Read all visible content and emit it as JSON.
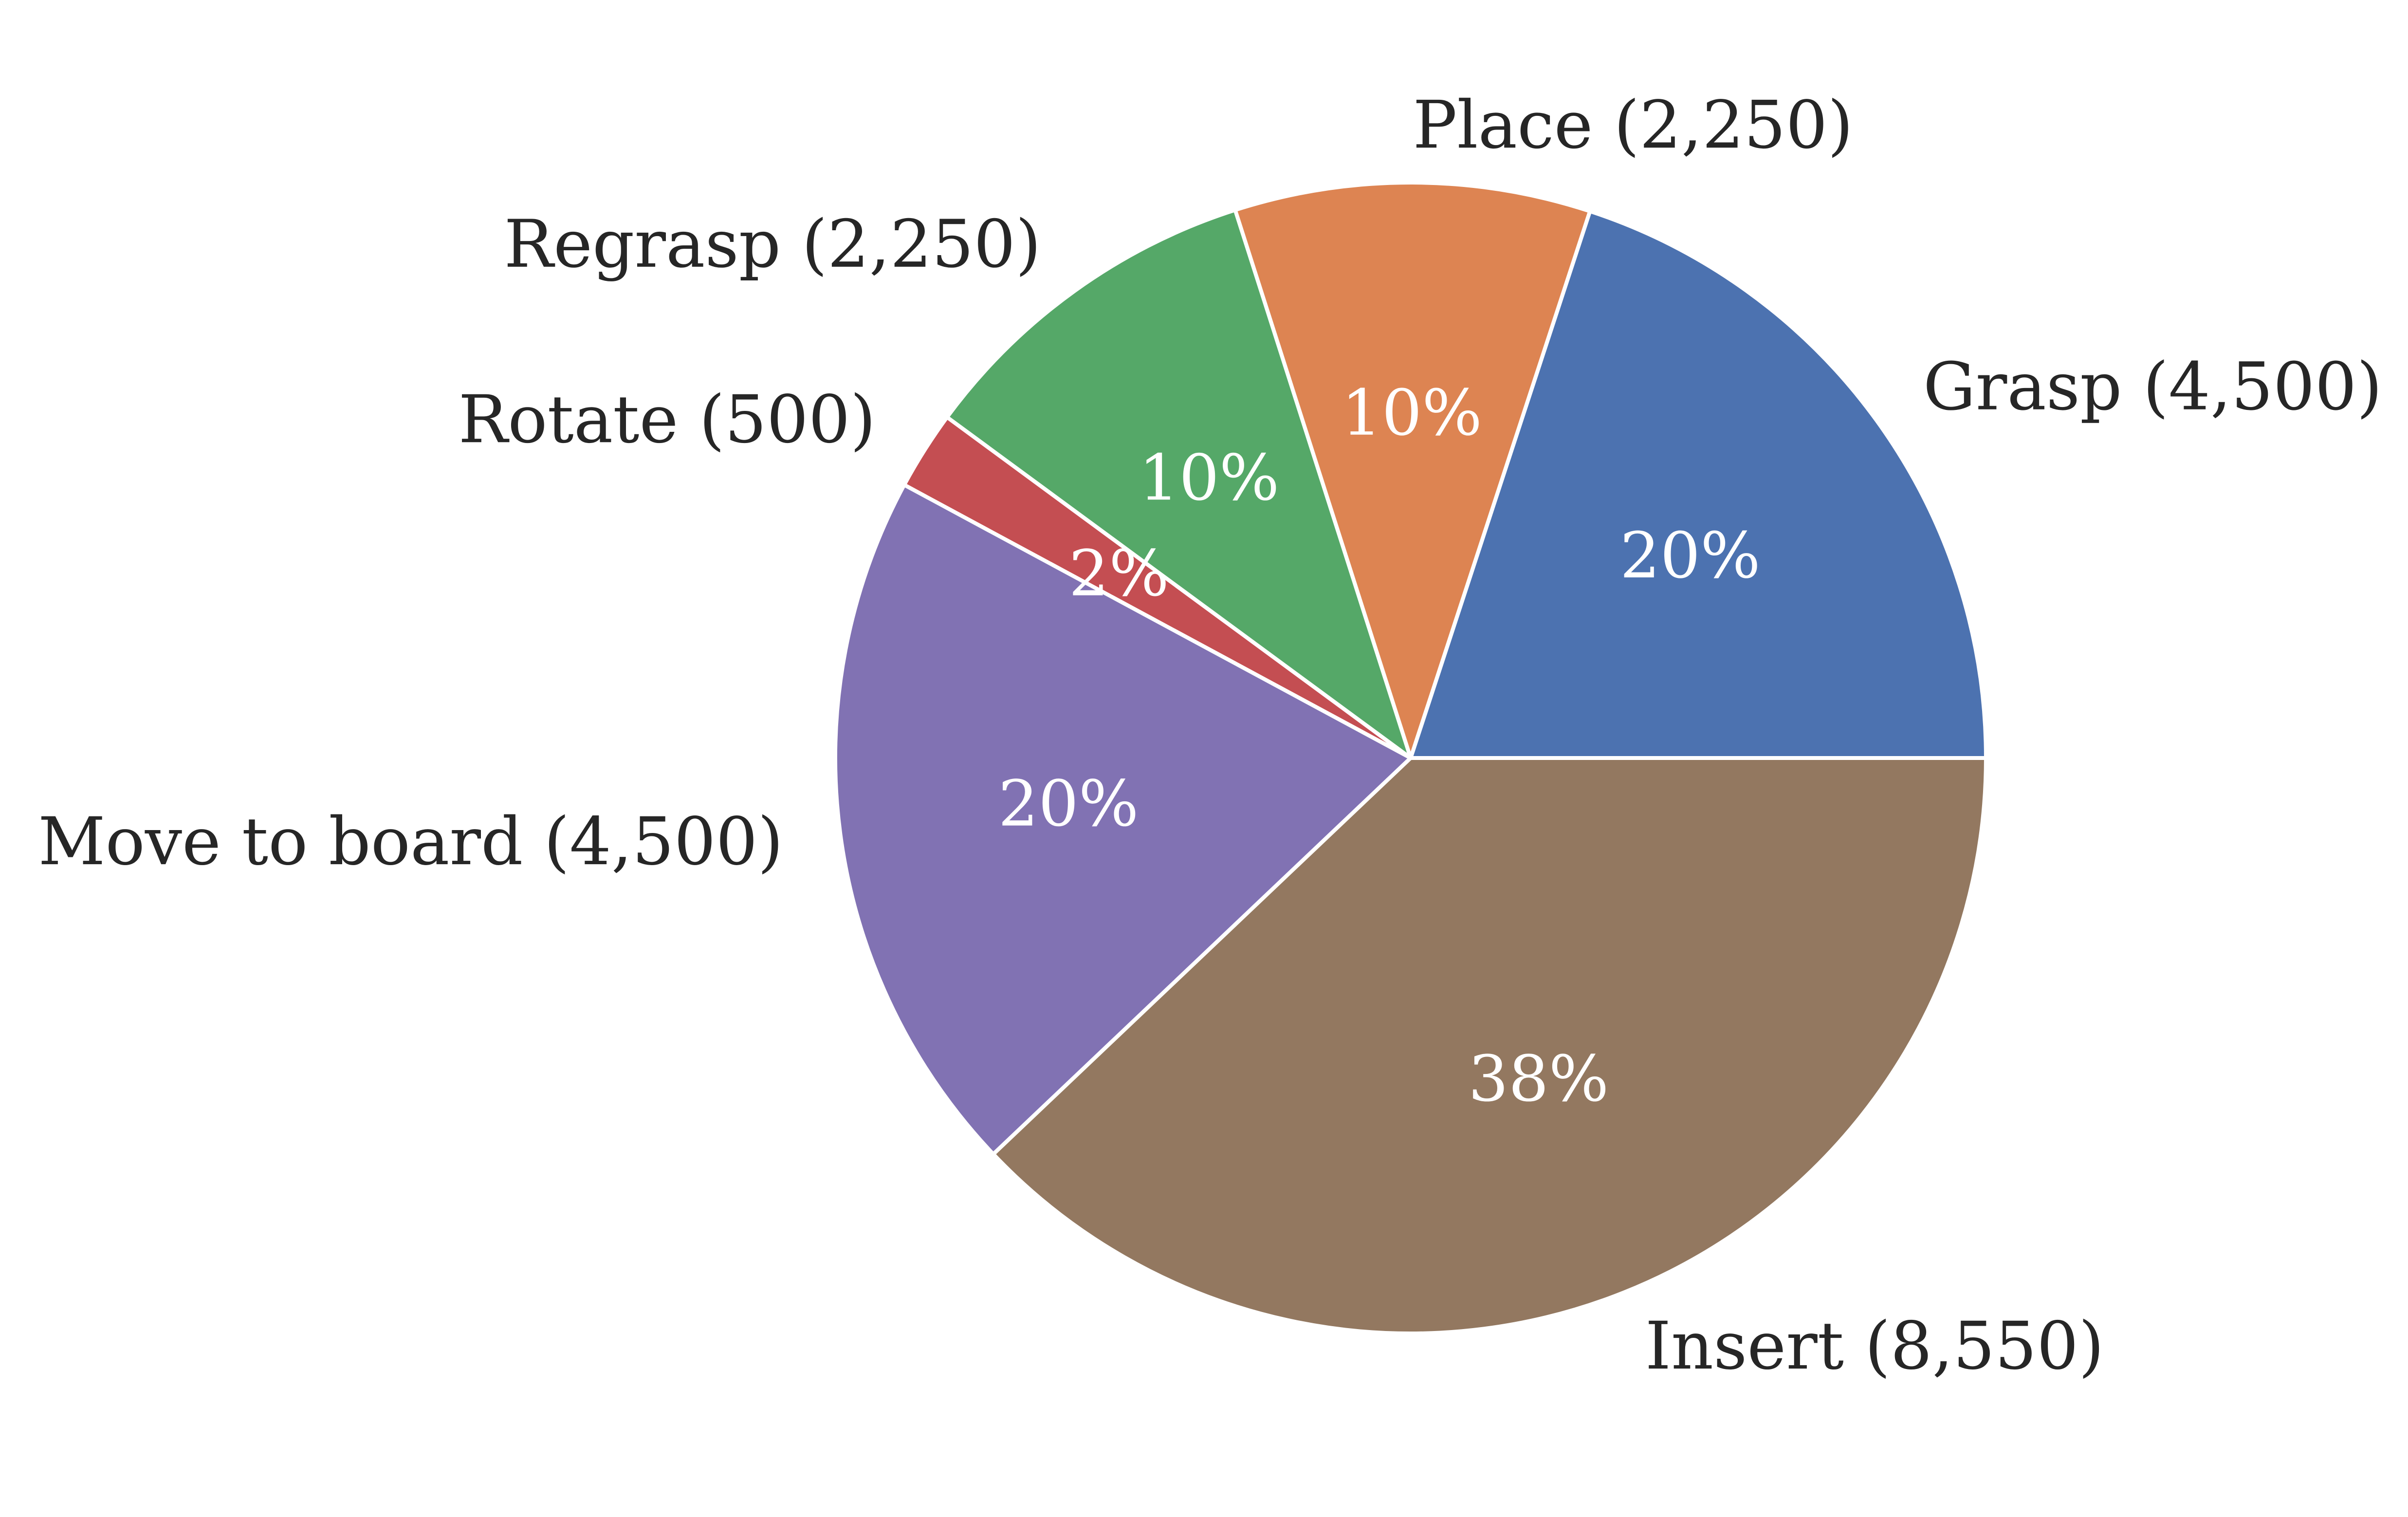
{
  "chart_data": {
    "type": "pie",
    "title": "",
    "start_angle_deg": 0,
    "direction": "counterclockwise",
    "slices": [
      {
        "label": "Grasp (4,500)",
        "value": 4500,
        "pct_label": "20%",
        "color": "#4c72b0"
      },
      {
        "label": "Place (2,250)",
        "value": 2250,
        "pct_label": "10%",
        "color": "#dd8452"
      },
      {
        "label": "Regrasp (2,250)",
        "value": 2250,
        "pct_label": "10%",
        "color": "#55a868"
      },
      {
        "label": "Rotate (500)",
        "value": 500,
        "pct_label": "2%",
        "color": "#c44e52"
      },
      {
        "label": "Move to board (4,500)",
        "value": 4500,
        "pct_label": "20%",
        "color": "#8172b3"
      },
      {
        "label": "Insert (8,550)",
        "value": 8550,
        "pct_label": "38%",
        "color": "#937860"
      }
    ]
  }
}
